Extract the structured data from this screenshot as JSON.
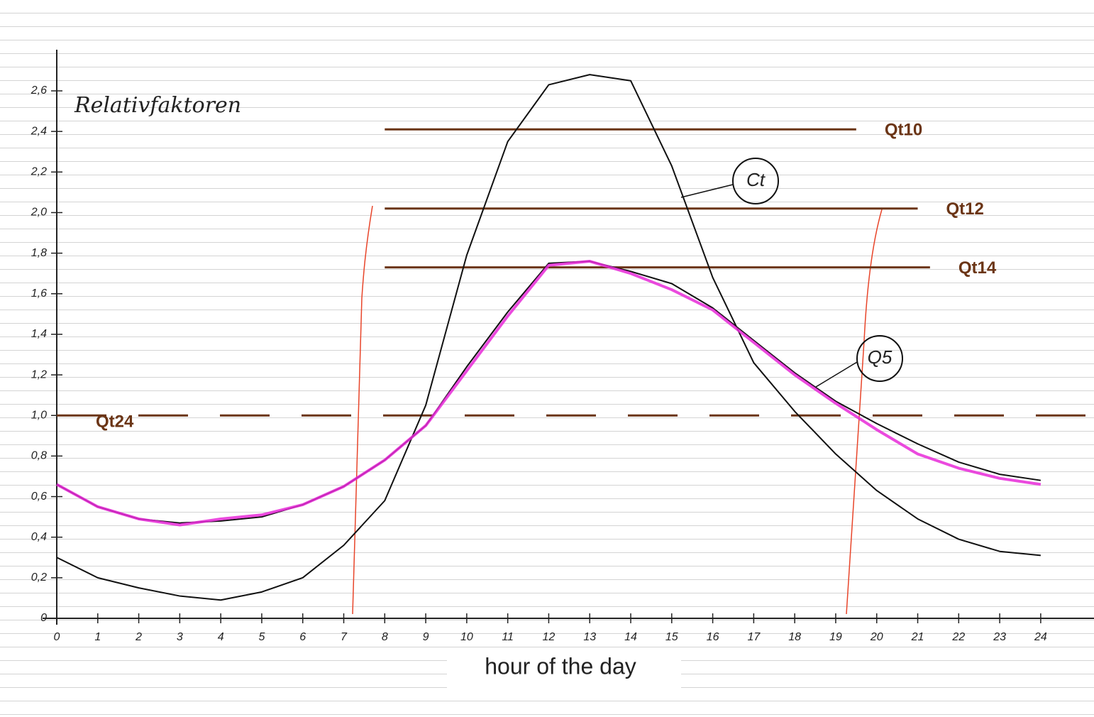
{
  "chart_data": {
    "type": "line",
    "title": "Relativfaktoren",
    "x_label": "hour of the day",
    "x": [
      0,
      1,
      2,
      3,
      4,
      5,
      6,
      7,
      8,
      9,
      10,
      11,
      12,
      13,
      14,
      15,
      16,
      17,
      18,
      19,
      20,
      21,
      22,
      23,
      24
    ],
    "series": [
      {
        "name": "Ct",
        "color": "#111111",
        "values": [
          0.3,
          0.2,
          0.15,
          0.11,
          0.09,
          0.13,
          0.2,
          0.36,
          0.58,
          1.05,
          1.79,
          2.35,
          2.63,
          2.68,
          2.65,
          2.23,
          1.68,
          1.26,
          1.02,
          0.81,
          0.63,
          0.49,
          0.39,
          0.33,
          0.31
        ]
      },
      {
        "name": "Q5",
        "color": "#111111",
        "values": [
          0.66,
          0.55,
          0.49,
          0.47,
          0.48,
          0.5,
          0.56,
          0.65,
          0.78,
          0.95,
          1.24,
          1.51,
          1.75,
          1.76,
          1.71,
          1.65,
          1.53,
          1.37,
          1.21,
          1.07,
          0.96,
          0.86,
          0.77,
          0.71,
          0.68
        ]
      },
      {
        "color": "#e82ad8",
        "values": [
          0.66,
          0.55,
          0.49,
          0.46,
          0.49,
          0.51,
          0.56,
          0.65,
          0.78,
          0.95,
          1.22,
          1.49,
          1.74,
          1.76,
          1.7,
          1.62,
          1.52,
          1.36,
          1.2,
          1.06,
          0.93,
          0.81,
          0.74,
          0.69,
          0.66
        ]
      }
    ],
    "reference_lines": [
      {
        "name": "Qt10",
        "value": 2.41,
        "x": [
          8,
          19.5
        ],
        "color": "#6b3516",
        "dashed": false
      },
      {
        "name": "Qt12",
        "value": 2.02,
        "x": [
          8,
          21
        ],
        "color": "#6b3516",
        "dashed": false
      },
      {
        "name": "Qt14",
        "value": 1.73,
        "x": [
          8,
          21.3
        ],
        "color": "#6b3516",
        "dashed": false
      },
      {
        "name": "Qt24",
        "value": 1.0,
        "x": [
          0,
          25.3
        ],
        "color": "#6b3516",
        "dashed": true
      }
    ],
    "xlim": [
      0,
      25.3
    ],
    "ylim": [
      0,
      2.6
    ],
    "xticks": [
      0,
      1,
      2,
      3,
      4,
      5,
      6,
      7,
      8,
      9,
      10,
      11,
      12,
      13,
      14,
      15,
      16,
      17,
      18,
      19,
      20,
      21,
      22,
      23,
      24
    ],
    "yticks": [
      0,
      {
        "value": 0.2,
        "label": "0,2"
      },
      {
        "value": 0.4,
        "label": "0,4"
      },
      {
        "value": 0.6,
        "label": "0,6"
      },
      {
        "value": 0.8,
        "label": "0,8"
      },
      {
        "value": 1.0,
        "label": "1,0"
      },
      {
        "value": 1.2,
        "label": "1,2"
      },
      {
        "value": 1.4,
        "label": "1,4"
      },
      {
        "value": 1.6,
        "label": "1,6"
      },
      {
        "value": 1.8,
        "label": "1,8"
      },
      {
        "value": 2.0,
        "label": "2,0"
      },
      {
        "value": 2.2,
        "label": "2,2"
      },
      {
        "value": 2.4,
        "label": "2,4"
      },
      {
        "value": 2.6,
        "label": "2,6"
      }
    ]
  }
}
